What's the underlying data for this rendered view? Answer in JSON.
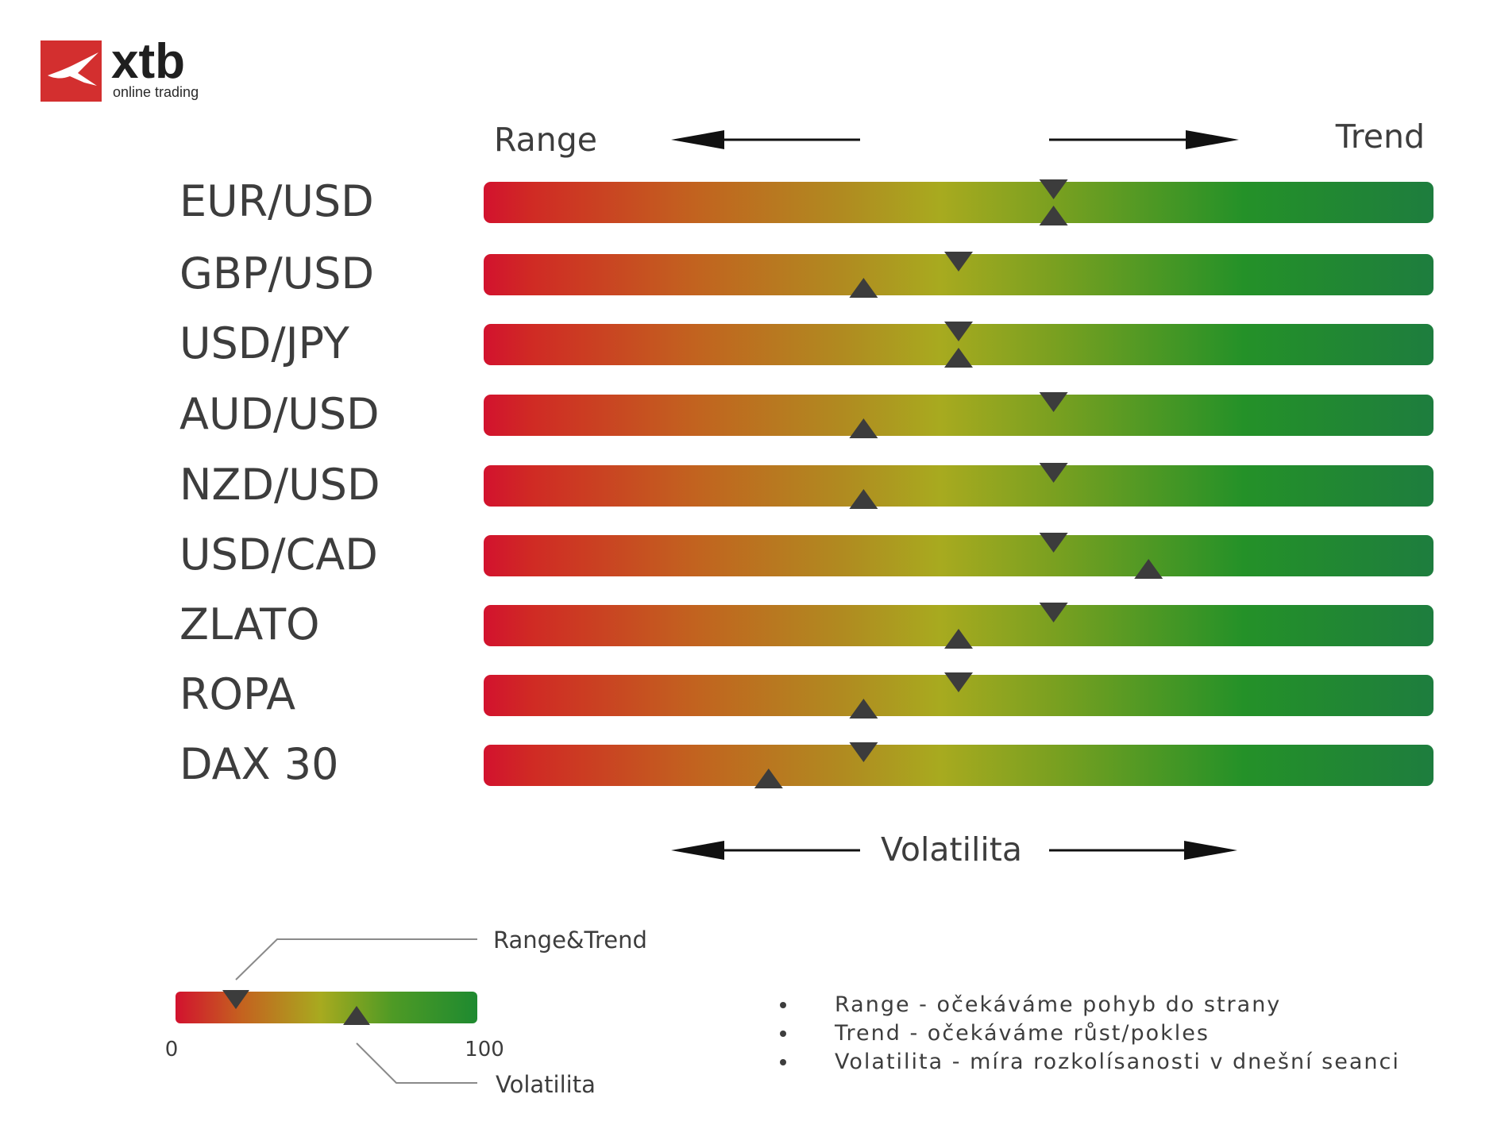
{
  "logo": {
    "brand": "xtb",
    "tagline": "online trading",
    "icon": "xtb-x-icon",
    "brand_color": "#d32f2f"
  },
  "header": {
    "left_label": "Range",
    "right_label": "Trend"
  },
  "chart_data": {
    "type": "gauge-bars",
    "scale": [
      0,
      100
    ],
    "gradient_colors": [
      "#d2122e",
      "#c0621f",
      "#a8ac1f",
      "#209028",
      "#1f7d3d"
    ],
    "marker_color": "#3c3c3c",
    "rows": [
      {
        "label": "EUR/USD",
        "range_trend": 60,
        "volatility": 60
      },
      {
        "label": "GBP/USD",
        "range_trend": 50,
        "volatility": 40
      },
      {
        "label": "USD/JPY",
        "range_trend": 50,
        "volatility": 50
      },
      {
        "label": "AUD/USD",
        "range_trend": 60,
        "volatility": 40
      },
      {
        "label": "NZD/USD",
        "range_trend": 60,
        "volatility": 40
      },
      {
        "label": "USD/CAD",
        "range_trend": 60,
        "volatility": 70
      },
      {
        "label": "ZLATO",
        "range_trend": 60,
        "volatility": 50
      },
      {
        "label": "ROPA",
        "range_trend": 50,
        "volatility": 40
      },
      {
        "label": "DAX 30",
        "range_trend": 40,
        "volatility": 30
      }
    ]
  },
  "volatility_axis": {
    "label": "Volatilita"
  },
  "legend": {
    "min_label": "0",
    "max_label": "100",
    "range_trend_label": "Range&Trend",
    "volatility_label": "Volatilita",
    "example_range_trend": 20,
    "example_volatility": 60
  },
  "notes": [
    "Range - očekáváme pohyb do strany",
    "Trend - očekáváme růst/pokles",
    "Volatilita - míra rozkolísanosti v dnešní seanci"
  ]
}
